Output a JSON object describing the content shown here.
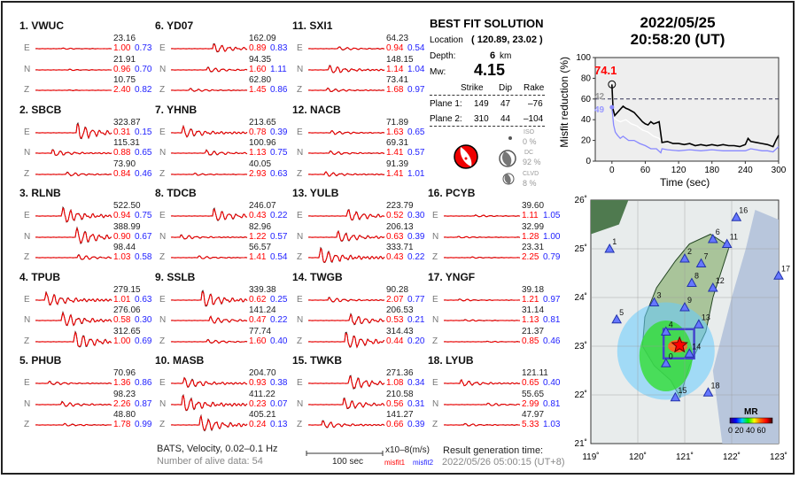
{
  "stations": [
    {
      "label": "1.  VWUC",
      "E": [
        "23.16",
        "1.00",
        "0.73"
      ],
      "N": [
        "21.91",
        "0.96",
        "0.70"
      ],
      "Z": [
        "10.75",
        "2.40",
        "0.82"
      ]
    },
    {
      "label": "2.  SBCB",
      "E": [
        "323.87",
        "0.31",
        "0.15"
      ],
      "N": [
        "115.31",
        "0.88",
        "0.65"
      ],
      "Z": [
        "73.90",
        "0.84",
        "0.46"
      ]
    },
    {
      "label": "3.  RLNB",
      "E": [
        "522.50",
        "0.94",
        "0.75"
      ],
      "N": [
        "388.99",
        "0.90",
        "0.67"
      ],
      "Z": [
        "98.44",
        "1.03",
        "0.58"
      ]
    },
    {
      "label": "4.  TPUB",
      "E": [
        "279.15",
        "1.01",
        "0.63"
      ],
      "N": [
        "276.06",
        "0.58",
        "0.30"
      ],
      "Z": [
        "312.65",
        "1.00",
        "0.69"
      ]
    },
    {
      "label": "5.  PHUB",
      "E": [
        "70.96",
        "1.36",
        "0.86"
      ],
      "N": [
        "98.23",
        "2.26",
        "0.87"
      ],
      "Z": [
        "48.80",
        "1.78",
        "0.99"
      ]
    },
    {
      "label": "6.  YD07",
      "E": [
        "162.09",
        "0.89",
        "0.83"
      ],
      "N": [
        "94.35",
        "1.60",
        "1.11"
      ],
      "Z": [
        "62.80",
        "1.45",
        "0.86"
      ]
    },
    {
      "label": "7.  YHNB",
      "E": [
        "213.65",
        "0.78",
        "0.39"
      ],
      "N": [
        "100.96",
        "1.13",
        "0.75"
      ],
      "Z": [
        "40.05",
        "2.93",
        "0.63"
      ]
    },
    {
      "label": "8.  TDCB",
      "E": [
        "246.07",
        "0.43",
        "0.22"
      ],
      "N": [
        "82.96",
        "1.22",
        "0.57"
      ],
      "Z": [
        "56.57",
        "1.41",
        "0.54"
      ]
    },
    {
      "label": "9.  SSLB",
      "E": [
        "339.38",
        "0.62",
        "0.25"
      ],
      "N": [
        "141.24",
        "0.47",
        "0.22"
      ],
      "Z": [
        "77.74",
        "1.60",
        "0.40"
      ]
    },
    {
      "label": "10. MASB",
      "E": [
        "204.70",
        "0.93",
        "0.38"
      ],
      "N": [
        "411.22",
        "0.23",
        "0.07"
      ],
      "Z": [
        "405.21",
        "0.24",
        "0.13"
      ]
    },
    {
      "label": "11. SXI1",
      "E": [
        "64.23",
        "0.94",
        "0.54"
      ],
      "N": [
        "148.15",
        "1.14",
        "1.04"
      ],
      "Z": [
        "73.41",
        "1.68",
        "0.97"
      ]
    },
    {
      "label": "12. NACB",
      "E": [
        "71.89",
        "1.63",
        "0.65"
      ],
      "N": [
        "69.31",
        "1.41",
        "0.57"
      ],
      "Z": [
        "91.39",
        "1.41",
        "1.01"
      ]
    },
    {
      "label": "13. YULB",
      "E": [
        "223.79",
        "0.52",
        "0.30"
      ],
      "N": [
        "206.13",
        "0.63",
        "0.39"
      ],
      "Z": [
        "333.71",
        "0.43",
        "0.22"
      ]
    },
    {
      "label": "14. TWGB",
      "E": [
        "90.28",
        "2.07",
        "0.77"
      ],
      "N": [
        "206.53",
        "0.53",
        "0.21"
      ],
      "Z": [
        "314.43",
        "0.44",
        "0.20"
      ]
    },
    {
      "label": "15. TWKB",
      "E": [
        "271.36",
        "1.08",
        "0.34"
      ],
      "N": [
        "210.58",
        "0.56",
        "0.31"
      ],
      "Z": [
        "141.27",
        "0.66",
        "0.39"
      ]
    },
    {
      "label": "16. PCYB",
      "E": [
        "39.60",
        "1.11",
        "1.05"
      ],
      "N": [
        "32.99",
        "1.28",
        "1.00"
      ],
      "Z": [
        "23.31",
        "2.25",
        "0.79"
      ]
    },
    {
      "label": "17. YNGF",
      "E": [
        "39.18",
        "1.21",
        "0.97"
      ],
      "N": [
        "31.14",
        "1.13",
        "0.81"
      ],
      "Z": [
        "21.37",
        "0.85",
        "0.46"
      ]
    },
    {
      "label": "18. LYUB",
      "E": [
        "121.11",
        "0.65",
        "0.40"
      ],
      "N": [
        "55.65",
        "2.99",
        "0.81"
      ],
      "Z": [
        "47.97",
        "5.33",
        "1.03"
      ]
    }
  ],
  "components": [
    "E",
    "N",
    "Z"
  ],
  "footer": {
    "network": "BATS, Velocity, 0.02–0.1 Hz",
    "alive": "Number of alive data: 54",
    "scale_label": "100 sec",
    "units": "x10–8(m/s)",
    "misfit1": "misfit1",
    "misfit2": "misfit2",
    "gen_label": "Result generation time:",
    "gen_time": "2022/05/26 05:00:15 (UT+8)"
  },
  "solution": {
    "title": "BEST FIT SOLUTION",
    "location_label": "Location",
    "location": "( 120.89,  23.02 )",
    "depth_label": "Depth:",
    "depth": "6",
    "depth_unit": "km",
    "mw_label": "Mw:",
    "mw": "4.15",
    "headers": [
      "Strike",
      "Dip",
      "Rake"
    ],
    "planes": [
      {
        "label": "Plane 1:",
        "strike": "149",
        "dip": "47",
        "rake": "–76"
      },
      {
        "label": "Plane 2:",
        "strike": "310",
        "dip": "44",
        "rake": "–104"
      }
    ],
    "iso_label": "ISO",
    "iso": "0  %",
    "dc_label": "DC",
    "dc": "92 %",
    "clvd_label": "CLVD",
    "clvd": "8  %"
  },
  "event": {
    "date": "2022/05/25",
    "time": "20:58:20  (UT)"
  },
  "chart_data": {
    "type": "line",
    "xlabel": "Time (sec)",
    "ylabel": "Misfit reduction (%)",
    "xlim": [
      -30,
      300
    ],
    "ylim": [
      0,
      100
    ],
    "xticks": [
      0,
      60,
      120,
      180,
      240,
      300
    ],
    "yticks": [
      0,
      20,
      40,
      60,
      80,
      100
    ],
    "threshold": 60,
    "peak_label": "74.1",
    "grey_label": "42",
    "blue_label": "49",
    "series": [
      {
        "color": "#000000",
        "x": [
          0,
          2,
          5,
          10,
          15,
          20,
          25,
          30,
          40,
          45,
          50,
          55,
          60,
          65,
          70,
          75,
          80,
          85,
          87,
          90,
          100,
          110,
          120,
          130,
          140,
          150,
          160,
          170,
          180,
          190,
          200,
          210,
          220,
          230,
          240,
          245,
          250,
          260,
          270,
          280,
          290,
          295,
          300
        ],
        "y": [
          74,
          50,
          44,
          47,
          50,
          53,
          51,
          50,
          47,
          44,
          41,
          38,
          36,
          35,
          38,
          36,
          37,
          38,
          30,
          18,
          19,
          17,
          17,
          16,
          17,
          15,
          16,
          15,
          16,
          15,
          16,
          15,
          15,
          14,
          16,
          22,
          19,
          18,
          17,
          16,
          14,
          20,
          25
        ]
      },
      {
        "color": "#ffffff",
        "x": [
          0,
          3,
          8,
          15,
          25,
          35,
          45,
          55,
          65,
          75,
          85,
          88
        ],
        "y": [
          60,
          42,
          40,
          38,
          40,
          36,
          34,
          30,
          28,
          24,
          22,
          20
        ]
      },
      {
        "color": "#8888ff",
        "x": [
          0,
          3,
          6,
          10,
          15,
          20,
          30,
          40,
          50,
          60,
          70,
          80,
          88,
          90,
          100,
          120,
          140,
          160,
          180,
          200,
          220,
          240,
          250,
          260,
          270,
          280,
          290,
          300
        ],
        "y": [
          52,
          35,
          28,
          25,
          22,
          24,
          20,
          20,
          17,
          15,
          12,
          12,
          8,
          12,
          11,
          10,
          11,
          10,
          11,
          10,
          10,
          10,
          12,
          11,
          10,
          10,
          9,
          14
        ]
      }
    ]
  },
  "map": {
    "lon_ticks": [
      "119˚",
      "120˚",
      "121˚",
      "122˚",
      "123˚"
    ],
    "lat_ticks": [
      "26˚",
      "25˚",
      "24˚",
      "23˚",
      "22˚",
      "21˚"
    ],
    "colorbar_title": "MR",
    "colorbar_ticks": "0  20 40 60",
    "epicenter": [
      120.89,
      23.02
    ],
    "stations": [
      {
        "n": "1",
        "lon": 119.4,
        "lat": 25.0
      },
      {
        "n": "2",
        "lon": 121.0,
        "lat": 24.8
      },
      {
        "n": "3",
        "lon": 120.35,
        "lat": 23.9
      },
      {
        "n": "4",
        "lon": 120.6,
        "lat": 23.3
      },
      {
        "n": "5",
        "lon": 119.55,
        "lat": 23.55
      },
      {
        "n": "6",
        "lon": 121.6,
        "lat": 25.2
      },
      {
        "n": "7",
        "lon": 121.35,
        "lat": 24.7
      },
      {
        "n": "8",
        "lon": 121.15,
        "lat": 24.3
      },
      {
        "n": "9",
        "lon": 121.0,
        "lat": 23.8
      },
      {
        "n": "0",
        "lon": 120.6,
        "lat": 22.65
      },
      {
        "n": "11",
        "lon": 121.9,
        "lat": 25.1
      },
      {
        "n": "12",
        "lon": 121.6,
        "lat": 24.2
      },
      {
        "n": "13",
        "lon": 121.3,
        "lat": 23.45
      },
      {
        "n": "14",
        "lon": 121.1,
        "lat": 22.85
      },
      {
        "n": "15",
        "lon": 120.8,
        "lat": 21.95
      },
      {
        "n": "16",
        "lon": 122.1,
        "lat": 25.65
      },
      {
        "n": "17",
        "lon": 123.0,
        "lat": 24.45
      },
      {
        "n": "18",
        "lon": 121.5,
        "lat": 22.05
      }
    ]
  }
}
